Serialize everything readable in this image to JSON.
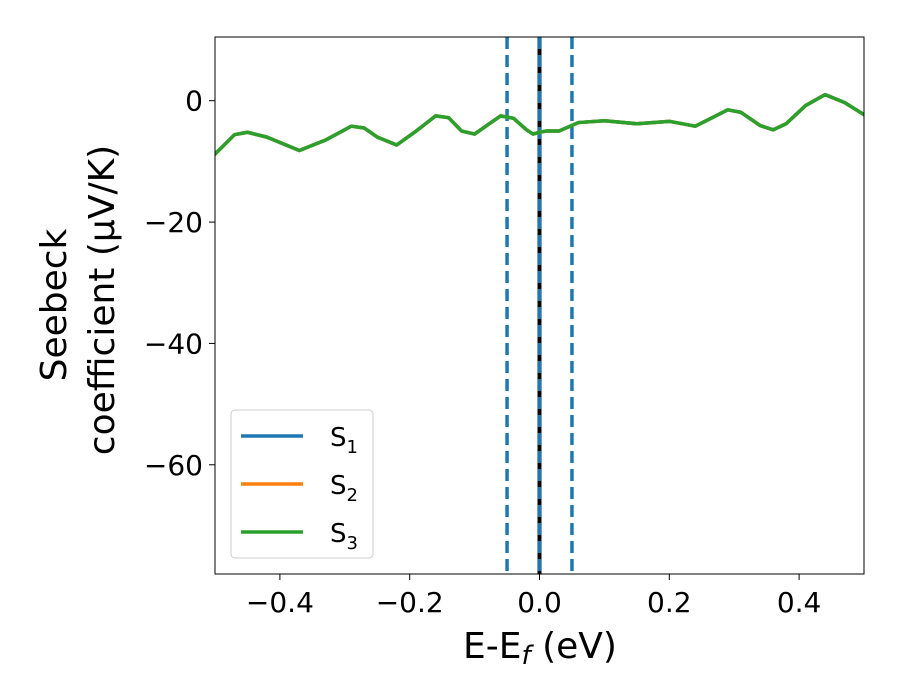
{
  "chart_data": {
    "type": "line",
    "title": "",
    "xlabel": {
      "main": "E-E",
      "sub": "f",
      "unit": " (eV)"
    },
    "ylabel": {
      "line1": "Seebeck",
      "line2": "coefficient  (μV/K)"
    },
    "xlim": [
      -0.5,
      0.5
    ],
    "ylim": [
      -78,
      10.5
    ],
    "xticks": [
      -0.4,
      -0.2,
      0.0,
      0.2,
      0.4
    ],
    "xtick_labels": [
      "−0.4",
      "−0.2",
      "0.0",
      "0.2",
      "0.4"
    ],
    "yticks": [
      0,
      -20,
      -40,
      -60
    ],
    "ytick_labels": [
      "0",
      "−20",
      "−40",
      "−60"
    ],
    "grid": false,
    "legend_position": "lower-left",
    "series": [
      {
        "name": "S",
        "name_sub": "1",
        "color": "#1f77b4",
        "x": [
          -0.5,
          -0.47,
          -0.45,
          -0.42,
          -0.37,
          -0.33,
          -0.29,
          -0.27,
          -0.25,
          -0.22,
          -0.19,
          -0.16,
          -0.14,
          -0.12,
          -0.1,
          -0.08,
          -0.06,
          -0.04,
          -0.02,
          -0.01,
          0.0,
          0.01,
          0.03,
          0.06,
          0.1,
          0.15,
          0.2,
          0.24,
          0.27,
          0.29,
          0.31,
          0.34,
          0.36,
          0.38,
          0.41,
          0.44,
          0.47,
          0.5
        ],
        "y": [
          -8.8,
          -5.6,
          -5.2,
          -6.0,
          -8.2,
          -6.5,
          -4.2,
          -4.5,
          -6.0,
          -7.3,
          -5.0,
          -2.5,
          -2.8,
          -5.0,
          -5.5,
          -4.0,
          -2.5,
          -2.9,
          -4.8,
          -5.5,
          -5.2,
          -5.0,
          -5.0,
          -3.6,
          -3.3,
          -3.8,
          -3.4,
          -4.2,
          -2.6,
          -1.5,
          -1.9,
          -4.1,
          -4.8,
          -3.8,
          -0.8,
          1.0,
          -0.3,
          -2.3
        ]
      },
      {
        "name": "S",
        "name_sub": "2",
        "color": "#ff7f0e",
        "x": [
          -0.5,
          -0.47,
          -0.45,
          -0.42,
          -0.37,
          -0.33,
          -0.29,
          -0.27,
          -0.25,
          -0.22,
          -0.19,
          -0.16,
          -0.14,
          -0.12,
          -0.1,
          -0.08,
          -0.06,
          -0.04,
          -0.02,
          -0.01,
          0.0,
          0.01,
          0.03,
          0.06,
          0.1,
          0.15,
          0.2,
          0.24,
          0.27,
          0.29,
          0.31,
          0.34,
          0.36,
          0.38,
          0.41,
          0.44,
          0.47,
          0.5
        ],
        "y": [
          -8.8,
          -5.6,
          -5.2,
          -6.0,
          -8.2,
          -6.5,
          -4.2,
          -4.5,
          -6.0,
          -7.3,
          -5.0,
          -2.5,
          -2.8,
          -5.0,
          -5.5,
          -4.0,
          -2.5,
          -2.9,
          -4.8,
          -5.5,
          -5.2,
          -5.0,
          -5.0,
          -3.6,
          -3.3,
          -3.8,
          -3.4,
          -4.2,
          -2.6,
          -1.5,
          -1.9,
          -4.1,
          -4.8,
          -3.8,
          -0.8,
          1.0,
          -0.3,
          -2.3
        ]
      },
      {
        "name": "S",
        "name_sub": "3",
        "color": "#2ca02c",
        "x": [
          -0.5,
          -0.47,
          -0.45,
          -0.42,
          -0.37,
          -0.33,
          -0.29,
          -0.27,
          -0.25,
          -0.22,
          -0.19,
          -0.16,
          -0.14,
          -0.12,
          -0.1,
          -0.08,
          -0.06,
          -0.04,
          -0.02,
          -0.01,
          0.0,
          0.01,
          0.03,
          0.06,
          0.1,
          0.15,
          0.2,
          0.24,
          0.27,
          0.29,
          0.31,
          0.34,
          0.36,
          0.38,
          0.41,
          0.44,
          0.47,
          0.5
        ],
        "y": [
          -8.8,
          -5.6,
          -5.2,
          -6.0,
          -8.2,
          -6.5,
          -4.2,
          -4.5,
          -6.0,
          -7.3,
          -5.0,
          -2.5,
          -2.8,
          -5.0,
          -5.5,
          -4.0,
          -2.5,
          -2.9,
          -4.8,
          -5.5,
          -5.2,
          -5.0,
          -5.0,
          -3.6,
          -3.3,
          -3.8,
          -3.4,
          -4.2,
          -2.6,
          -1.5,
          -1.9,
          -4.1,
          -4.8,
          -3.8,
          -0.8,
          1.0,
          -0.3,
          -2.3
        ]
      }
    ],
    "vertical_lines": [
      {
        "x": -0.05,
        "style": "dashed",
        "color": "#1f77b4"
      },
      {
        "x": 0.0,
        "style": "solid",
        "color": "#000000"
      },
      {
        "x": 0.0,
        "style": "dashed",
        "color": "#1f77b4"
      },
      {
        "x": 0.05,
        "style": "dashed",
        "color": "#1f77b4"
      }
    ]
  }
}
